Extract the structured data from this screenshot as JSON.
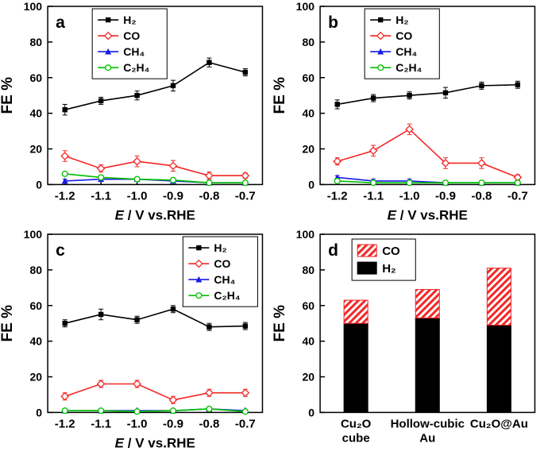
{
  "figure": {
    "background": "#ffffff"
  },
  "chart_data": [
    {
      "id": "a",
      "type": "line",
      "panel_label": "a",
      "xlabel_parts": [
        {
          "text": "E",
          "italic": true
        },
        {
          "text": " / V vs.RHE",
          "italic": false
        }
      ],
      "ylabel": "FE %",
      "ylim": [
        0,
        100
      ],
      "yticks": [
        0,
        20,
        40,
        60,
        80,
        100
      ],
      "x": [
        -1.2,
        -1.1,
        -1.0,
        -0.9,
        -0.8,
        -0.7
      ],
      "xtick_labels": [
        "-1.2",
        "-1.1",
        "-1.0",
        "-0.9",
        "-0.8",
        "-0.7"
      ],
      "legend": "center",
      "series": [
        {
          "name": "H₂",
          "color": "#000000",
          "marker": "square-filled",
          "values": [
            42,
            47,
            50,
            55.5,
            68.5,
            63
          ],
          "errors": [
            3,
            2,
            2.5,
            3,
            2.5,
            2
          ]
        },
        {
          "name": "CO",
          "color": "#f42525",
          "marker": "diamond-open",
          "values": [
            16,
            9,
            13,
            10.5,
            5,
            5
          ],
          "errors": [
            3,
            2,
            3,
            3,
            2,
            1.5
          ]
        },
        {
          "name": "CH₄",
          "color": "#1a1ae6",
          "marker": "triangle-filled",
          "values": [
            2,
            3,
            3,
            2,
            1,
            1
          ],
          "errors": [
            1,
            1,
            1,
            1,
            0.5,
            0.5
          ]
        },
        {
          "name": "C₂H₄",
          "color": "#00c000",
          "marker": "circle-open",
          "values": [
            6,
            4,
            3,
            2.5,
            1,
            1
          ],
          "errors": [
            1,
            1,
            1,
            1,
            0.5,
            0.5
          ]
        }
      ]
    },
    {
      "id": "b",
      "type": "line",
      "panel_label": "b",
      "xlabel_parts": [
        {
          "text": "E",
          "italic": true
        },
        {
          "text": " / V vs.RHE",
          "italic": false
        }
      ],
      "ylabel": "FE %",
      "ylim": [
        0,
        100
      ],
      "yticks": [
        0,
        20,
        40,
        60,
        80,
        100
      ],
      "x": [
        -1.2,
        -1.1,
        -1.0,
        -0.9,
        -0.8,
        -0.7
      ],
      "xtick_labels": [
        "-1.2",
        "-1.1",
        "-1.0",
        "-0.9",
        "-0.8",
        "-0.7"
      ],
      "legend": "center",
      "series": [
        {
          "name": "H₂",
          "color": "#000000",
          "marker": "square-filled",
          "values": [
            45,
            48.5,
            50,
            51.5,
            55.5,
            56
          ],
          "errors": [
            2.5,
            2,
            2,
            3,
            2,
            2
          ]
        },
        {
          "name": "CO",
          "color": "#f42525",
          "marker": "diamond-open",
          "values": [
            13,
            19,
            31,
            12,
            12,
            4
          ],
          "errors": [
            2,
            3,
            3,
            3,
            3,
            1.5
          ]
        },
        {
          "name": "CH₄",
          "color": "#1a1ae6",
          "marker": "triangle-filled",
          "values": [
            4,
            2,
            2,
            1,
            1,
            1
          ],
          "errors": [
            1,
            1,
            1,
            0.5,
            0.5,
            0.5
          ]
        },
        {
          "name": "C₂H₄",
          "color": "#00c000",
          "marker": "circle-open",
          "values": [
            2,
            1,
            1,
            1,
            1,
            1
          ],
          "errors": [
            1,
            0.5,
            0.5,
            0.5,
            0.5,
            0.5
          ]
        }
      ]
    },
    {
      "id": "c",
      "type": "line",
      "panel_label": "c",
      "xlabel_parts": [
        {
          "text": "E",
          "italic": true
        },
        {
          "text": " / V vs.RHE",
          "italic": false
        }
      ],
      "ylabel": "FE %",
      "ylim": [
        0,
        100
      ],
      "yticks": [
        0,
        20,
        40,
        60,
        80,
        100
      ],
      "x": [
        -1.2,
        -1.1,
        -1.0,
        -0.9,
        -0.8,
        -0.7
      ],
      "xtick_labels": [
        "-1.2",
        "-1.1",
        "-1.0",
        "-0.9",
        "-0.8",
        "-0.7"
      ],
      "legend": "right",
      "series": [
        {
          "name": "H₂",
          "color": "#000000",
          "marker": "square-filled",
          "values": [
            50,
            55,
            52,
            58,
            48,
            48.5
          ],
          "errors": [
            2,
            3,
            2,
            2,
            2,
            2
          ]
        },
        {
          "name": "CO",
          "color": "#f42525",
          "marker": "diamond-open",
          "values": [
            9,
            16,
            16,
            7,
            11,
            11
          ],
          "errors": [
            2,
            2,
            2,
            2,
            2,
            2
          ]
        },
        {
          "name": "CH₄",
          "color": "#1a1ae6",
          "marker": "triangle-filled",
          "values": [
            1,
            1,
            1,
            1,
            2,
            1
          ],
          "errors": [
            0.5,
            0.5,
            0.5,
            0.5,
            0.5,
            0.5
          ]
        },
        {
          "name": "C₂H₄",
          "color": "#00c000",
          "marker": "circle-open",
          "values": [
            1,
            1,
            0.5,
            1,
            2,
            0.5
          ],
          "errors": [
            0.5,
            0.5,
            0.5,
            0.5,
            0.5,
            0.5
          ]
        }
      ]
    },
    {
      "id": "d",
      "type": "stacked-bar",
      "panel_label": "d",
      "ylabel": "FE %",
      "ylim": [
        0,
        100
      ],
      "yticks": [
        0,
        20,
        40,
        60,
        80,
        100
      ],
      "categories": [
        [
          "Cu₂O",
          "cube"
        ],
        [
          "Hollow-cubic",
          "Au"
        ],
        [
          "Cu₂O@Au"
        ]
      ],
      "legend_order": [
        "CO",
        "H₂"
      ],
      "series": [
        {
          "name": "H₂",
          "color": "#000000",
          "hatch": false,
          "values": [
            50,
            53,
            49
          ]
        },
        {
          "name": "CO",
          "color": "#f42525",
          "hatch": true,
          "values": [
            13,
            16,
            32
          ]
        }
      ]
    }
  ]
}
